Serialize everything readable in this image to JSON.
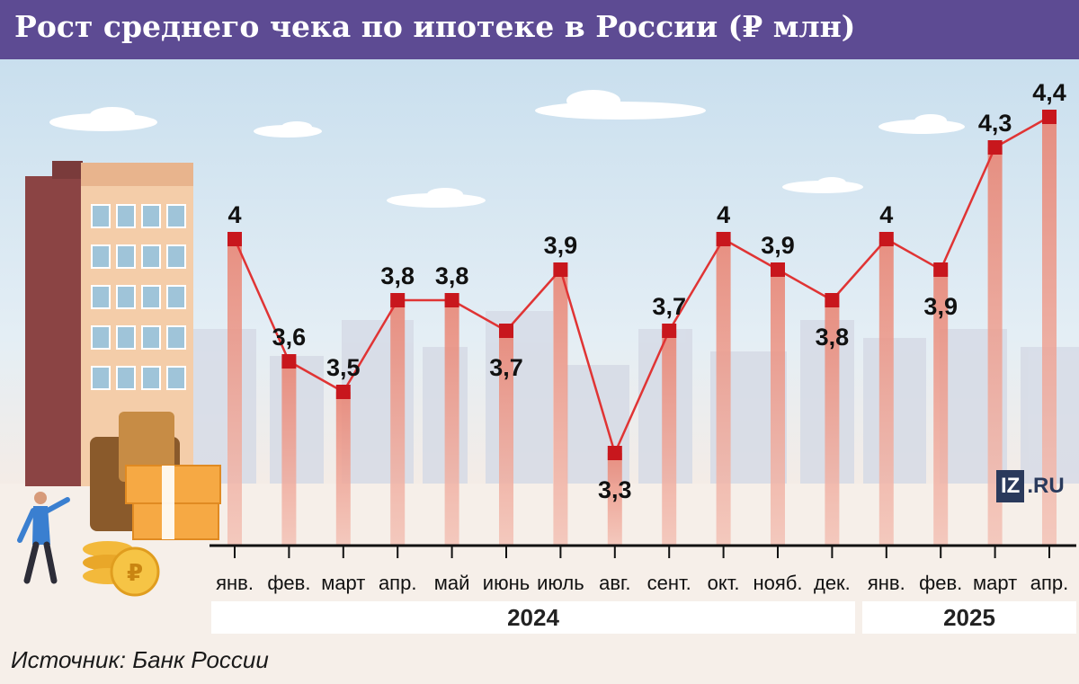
{
  "title": "Рост среднего чека по ипотеке в России (₽ млн)",
  "source": "Источник: Банк России",
  "logo": {
    "iz": "IZ",
    "ru": ".RU"
  },
  "colors": {
    "header": "#5d4b93",
    "line": "#e03434",
    "marker": "#c8171d",
    "bar": "#e88f7e",
    "sky": "#d3e4f0",
    "ground": "#f6efe9"
  },
  "chart_data": {
    "type": "line",
    "categories": [
      "янв.",
      "фев.",
      "март",
      "апр.",
      "май",
      "июнь",
      "июль",
      "авг.",
      "сент.",
      "окт.",
      "нояб.",
      "дек.",
      "янв.",
      "фев.",
      "март",
      "апр."
    ],
    "values": [
      4,
      3.6,
      3.5,
      3.8,
      3.8,
      3.7,
      3.9,
      3.3,
      3.7,
      4,
      3.9,
      3.8,
      4,
      3.9,
      4.3,
      4.4
    ],
    "value_labels": [
      "4",
      "3,6",
      "3,5",
      "3,8",
      "3,8",
      "3,7",
      "3,9",
      "3,3",
      "3,7",
      "4",
      "3,9",
      "3,8",
      "4",
      "3,9",
      "4,3",
      "4,4"
    ],
    "years": [
      {
        "label": "2024",
        "count": 12
      },
      {
        "label": "2025",
        "count": 4
      }
    ],
    "title": "Рост среднего чека по ипотеке в России (₽ млн)",
    "xlabel": "",
    "ylabel": "",
    "grid": false,
    "legend": "none"
  }
}
